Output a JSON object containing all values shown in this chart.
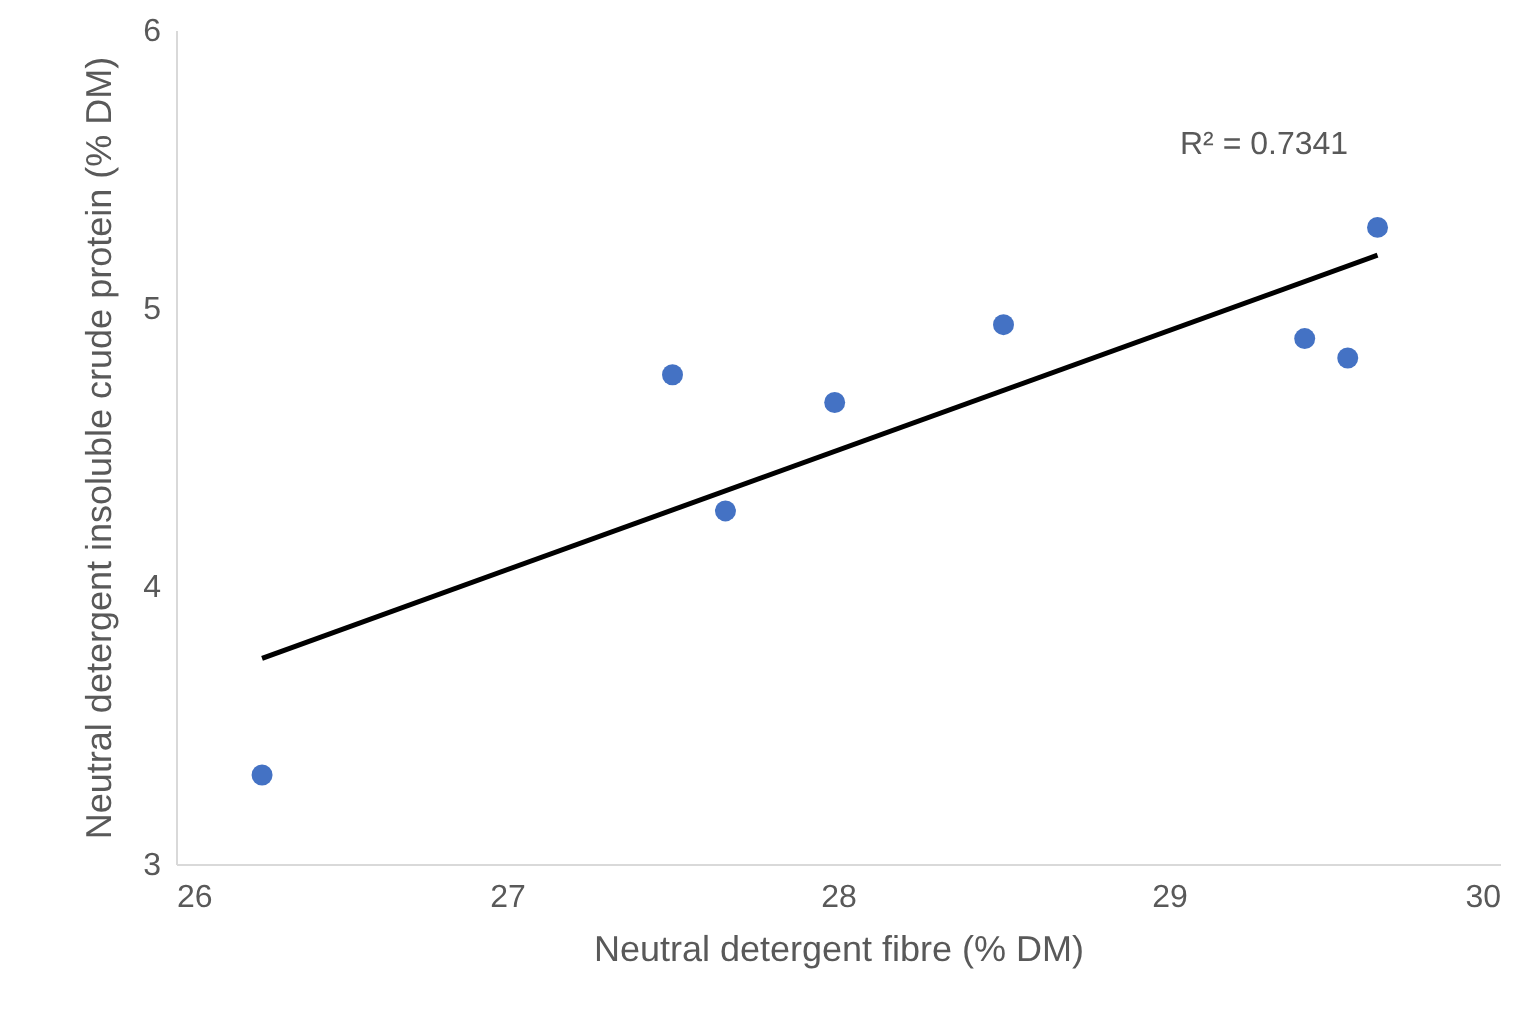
{
  "chart_data": {
    "type": "scatter",
    "xlabel": "Neutral detergent fibre (% DM)",
    "ylabel": "Neutral detergent insoluble crude protein (% DM)",
    "xlim": [
      26,
      30
    ],
    "xticks": [
      26,
      27,
      28,
      29,
      30
    ],
    "ylim": [
      3,
      6
    ],
    "yticks": [
      3,
      4,
      5,
      6
    ],
    "grid": false,
    "annotations": [
      "R² = 0.7341"
    ],
    "series": [
      {
        "color": "#4472c4",
        "marker": "circle",
        "x": [
          26.26,
          27.5,
          27.66,
          27.99,
          28.5,
          29.41,
          29.54,
          29.63
        ],
        "values": [
          3.32,
          4.76,
          4.27,
          4.66,
          4.94,
          4.89,
          4.82,
          5.29
        ]
      },
      {
        "type": "line",
        "color": "#000000",
        "line_style": "solid",
        "x": [
          26.26,
          29.63
        ],
        "values": [
          3.74,
          5.19
        ]
      }
    ]
  }
}
